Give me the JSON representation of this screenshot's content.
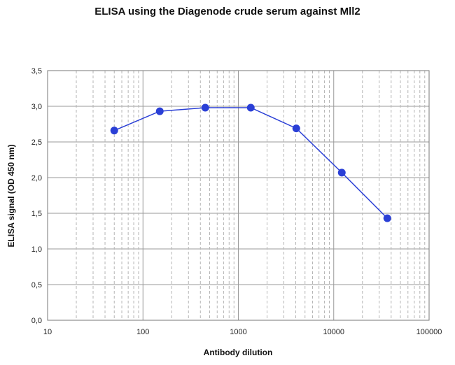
{
  "chart_data": {
    "type": "line",
    "title": "ELISA using the Diagenode crude serum against Mll2",
    "xlabel": "Antibody dilution",
    "ylabel": "ELISA signal (OD 450 nm)",
    "x_scale": "log",
    "xlim": [
      10,
      100000
    ],
    "ylim": [
      0,
      3.5
    ],
    "x_tick_labels": [
      "10",
      "100",
      "1000",
      "10000",
      "100000"
    ],
    "y_tick_labels": [
      "0,0",
      "0,5",
      "1,0",
      "1,5",
      "2,0",
      "2,5",
      "3,0",
      "3,5"
    ],
    "x_ticks": [
      10,
      100,
      1000,
      10000,
      100000
    ],
    "y_ticks": [
      0,
      0.5,
      1.0,
      1.5,
      2.0,
      2.5,
      3.0,
      3.5
    ],
    "grid": true,
    "legend": "none",
    "series": [
      {
        "color": "#2a3fd6",
        "x": [
          50,
          150,
          450,
          1350,
          4050,
          12150,
          36450
        ],
        "y": [
          2.66,
          2.93,
          2.98,
          2.98,
          2.69,
          2.07,
          1.43
        ]
      }
    ]
  }
}
